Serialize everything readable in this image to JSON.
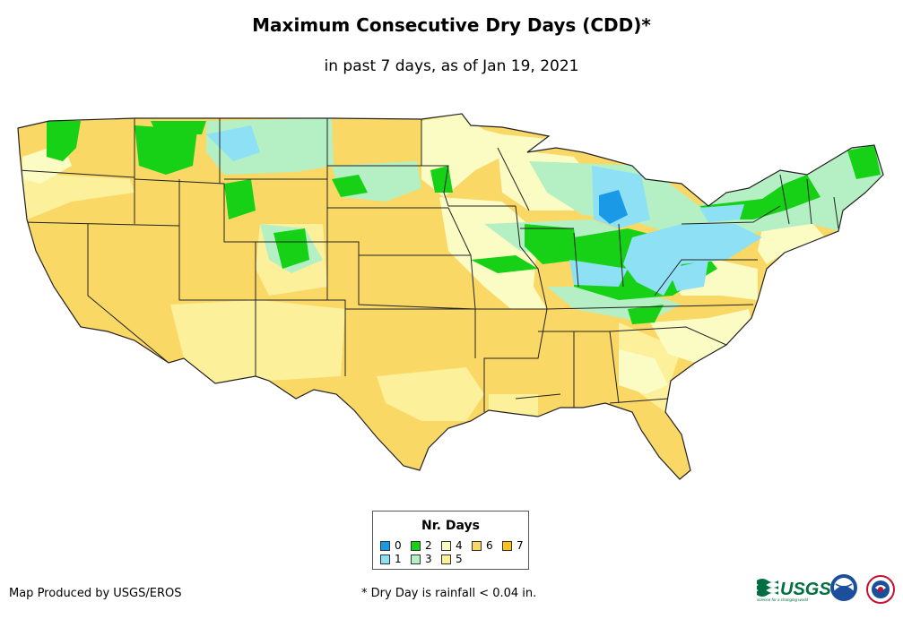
{
  "title": "Maximum Consecutive Dry Days (CDD)*",
  "subtitle": "in past 7 days, as of Jan 19, 2021",
  "legend": {
    "title": "Nr. Days",
    "items": [
      {
        "label": "0",
        "color": "#1a9ae6"
      },
      {
        "label": "1",
        "color": "#8ee0f5"
      },
      {
        "label": "2",
        "color": "#16d116"
      },
      {
        "label": "3",
        "color": "#b5f0c4"
      },
      {
        "label": "4",
        "color": "#fbfbc4"
      },
      {
        "label": "5",
        "color": "#fdf09a"
      },
      {
        "label": "6",
        "color": "#fad866"
      },
      {
        "label": "7",
        "color": "#f7c31c"
      }
    ]
  },
  "credit": "Map Produced by USGS/EROS",
  "footnote": "* Dry Day is rainfall < 0.04 in.",
  "logos": {
    "usgs_text": "USGS",
    "usgs_tagline": "science for a changing world"
  }
}
